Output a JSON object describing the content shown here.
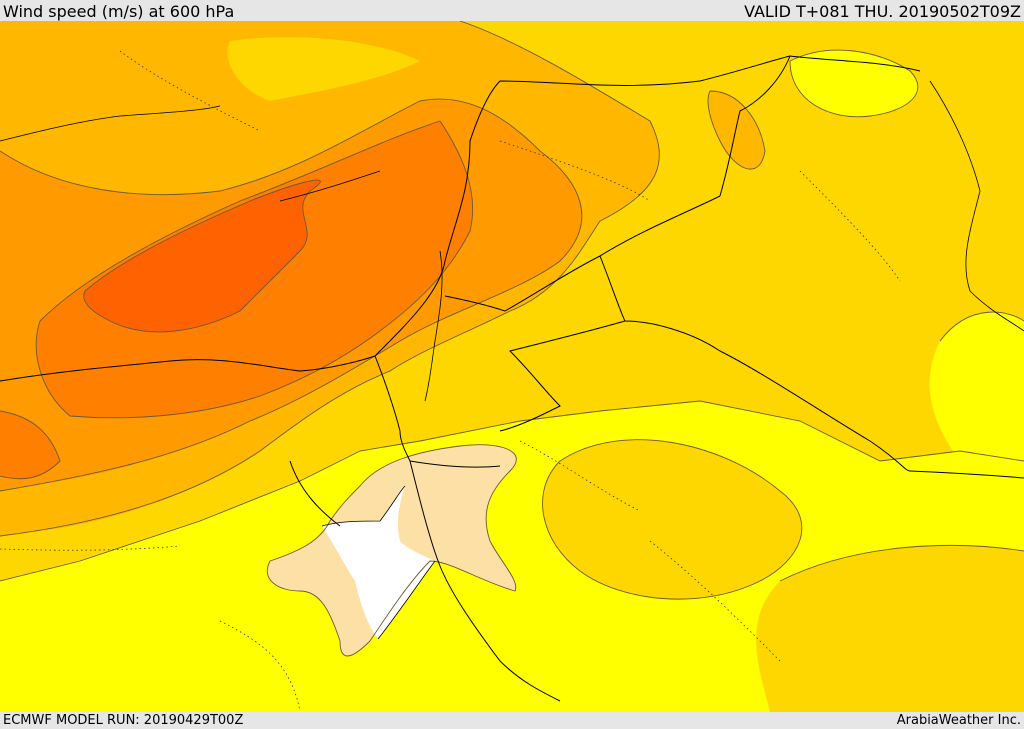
{
  "header": {
    "title": "Wind speed (m/s) at 600 hPa",
    "valid": "VALID T+081 THU. 20190502T09Z"
  },
  "footer": {
    "model_run": "ECMWF MODEL RUN: 20190429T00Z",
    "credit": "ArabiaWeather Inc."
  },
  "colors": {
    "band_lowest": "#ffffff",
    "band_1": "#fde0a6",
    "band_2": "#ffff00",
    "band_3": "#ffd700",
    "band_4": "#ffb700",
    "band_5": "#ff9a00",
    "band_6": "#ff7f00",
    "band_highest": "#ff6200",
    "contour_line": "#6b5a3a",
    "border_line": "#000000"
  }
}
